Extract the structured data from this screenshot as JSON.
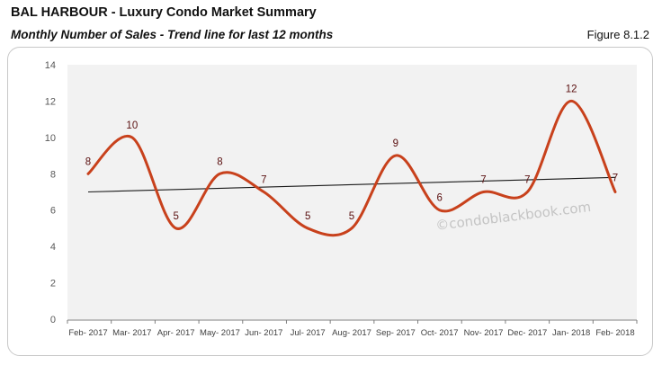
{
  "header": {
    "title": "BAL HARBOUR - Luxury Condo Market Summary",
    "subtitle": "Monthly Number of Sales - Trend line for last 12 months",
    "figure": "Figure 8.1.2"
  },
  "watermark": "©condoblackbook.com",
  "colors": {
    "series": "#c8411c",
    "trendline": "#1a1a1a",
    "plot_bg": "#f2f2f2",
    "data_label": "#5a0f0f"
  },
  "chart_data": {
    "type": "line",
    "title": "Monthly Number of Sales - Trend line for last 12 months",
    "xlabel": "",
    "ylabel": "",
    "categories": [
      "Feb- 2017",
      "Mar- 2017",
      "Apr- 2017",
      "May- 2017",
      "Jun- 2017",
      "Jul- 2017",
      "Aug- 2017",
      "Sep- 2017",
      "Oct- 2017",
      "Nov- 2017",
      "Dec- 2017",
      "Jan- 2018",
      "Feb- 2018"
    ],
    "series": [
      {
        "name": "Monthly Number of Sales",
        "values": [
          8,
          10,
          5,
          8,
          7,
          5,
          5,
          9,
          6,
          7,
          7,
          12,
          7
        ],
        "smooth": true,
        "data_labels": true
      }
    ],
    "trendline": {
      "type": "linear",
      "start": 7.0,
      "end": 7.8
    },
    "ylim": [
      0,
      14
    ],
    "yticks": [
      0,
      2,
      4,
      6,
      8,
      10,
      12,
      14
    ],
    "grid": false,
    "legend": "none"
  }
}
